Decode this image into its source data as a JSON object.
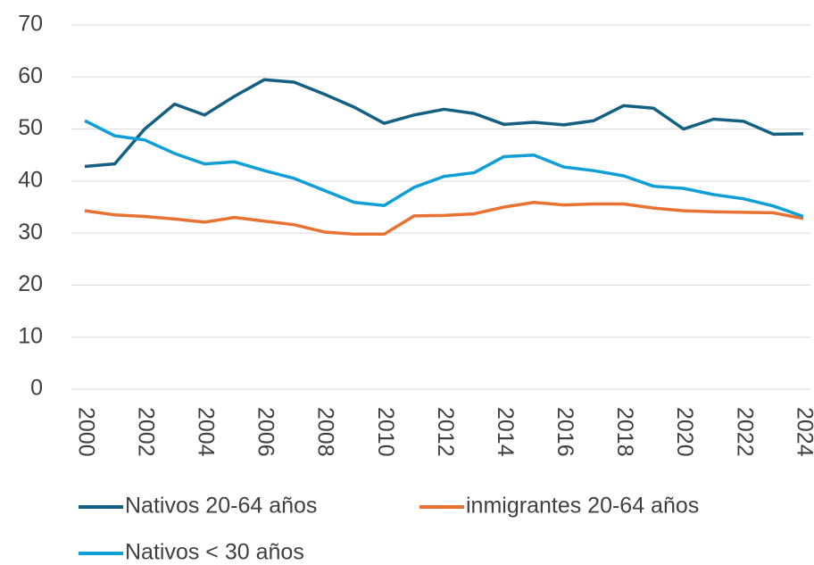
{
  "chart_data": {
    "type": "line",
    "x": [
      2000,
      2001,
      2002,
      2003,
      2004,
      2005,
      2006,
      2007,
      2008,
      2009,
      2010,
      2011,
      2012,
      2013,
      2014,
      2015,
      2016,
      2017,
      2018,
      2019,
      2020,
      2021,
      2022,
      2023,
      2024
    ],
    "series": [
      {
        "name": "Nativos 20-64 años",
        "color": "#156082",
        "values": [
          42.8,
          43.3,
          50,
          54.8,
          52.7,
          56.3,
          59.5,
          59,
          56.7,
          54.2,
          51.1,
          52.7,
          53.8,
          53,
          50.9,
          51.3,
          50.8,
          51.6,
          54.5,
          54,
          50,
          51.9,
          51.5,
          49,
          49.1
        ]
      },
      {
        "name": "inmigrantes 20-64 años",
        "color": "#e97132",
        "values": [
          34.3,
          33.5,
          33.2,
          32.7,
          32.1,
          33,
          32.3,
          31.6,
          30.2,
          29.8,
          29.8,
          33.3,
          33.4,
          33.7,
          35,
          35.9,
          35.4,
          35.6,
          35.6,
          34.8,
          34.3,
          34.1,
          34,
          33.9,
          32.8
        ]
      },
      {
        "name": "Nativos < 30 años",
        "color": "#0f9ed5",
        "values": [
          51.6,
          48.7,
          47.9,
          45.3,
          43.3,
          43.7,
          42,
          40.5,
          38.2,
          35.9,
          35.3,
          38.8,
          40.9,
          41.6,
          44.7,
          45,
          42.7,
          42,
          41,
          39,
          38.6,
          37.4,
          36.6,
          35.2,
          33.2
        ]
      }
    ],
    "xlim": [
      2000,
      2024
    ],
    "xticks": [
      2000,
      2002,
      2004,
      2006,
      2008,
      2010,
      2012,
      2014,
      2016,
      2018,
      2020,
      2022,
      2024
    ],
    "ylim": [
      0,
      70
    ],
    "yticks": [
      0,
      10,
      20,
      30,
      40,
      50,
      60,
      70
    ],
    "grid": true,
    "legend": "bottom"
  }
}
